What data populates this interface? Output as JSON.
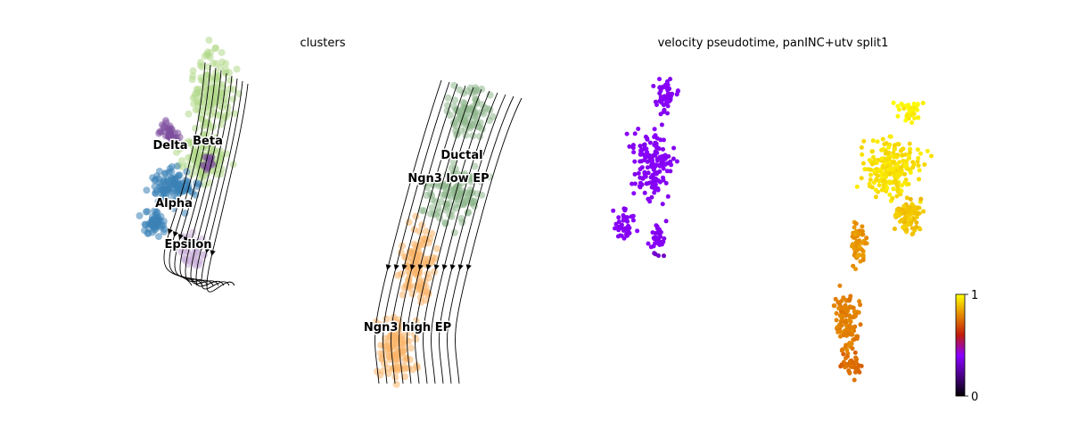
{
  "chart_data": [
    {
      "type": "scatter",
      "title": "clusters",
      "overlay": "velocity streamlines",
      "legend": "on data",
      "axes": "off",
      "categories": [
        {
          "name": "Delta",
          "color": "#7e4f9e"
        },
        {
          "name": "Beta",
          "color": "#b2d88b"
        },
        {
          "name": "Alpha",
          "color": "#3a82b6"
        },
        {
          "name": "Epsilon",
          "color": "#cbb0d8"
        },
        {
          "name": "Ductal",
          "color": "#8fb88e"
        },
        {
          "name": "Ngn3 low EP",
          "color": "#8fb88e"
        },
        {
          "name": "Ngn3 high EP",
          "color": "#f9b56a"
        }
      ]
    },
    {
      "type": "scatter",
      "title": "velocity pseudotime, panINC+utv split1",
      "axes": "off",
      "colormap": "gnuplot",
      "colorbar": {
        "min": 0,
        "max": 1,
        "ticks": [
          "0",
          "1"
        ]
      },
      "colormap_stops": [
        "#000000",
        "#6a00b8",
        "#8a00ff",
        "#c21b0b",
        "#e58a00",
        "#ffff00"
      ]
    }
  ]
}
